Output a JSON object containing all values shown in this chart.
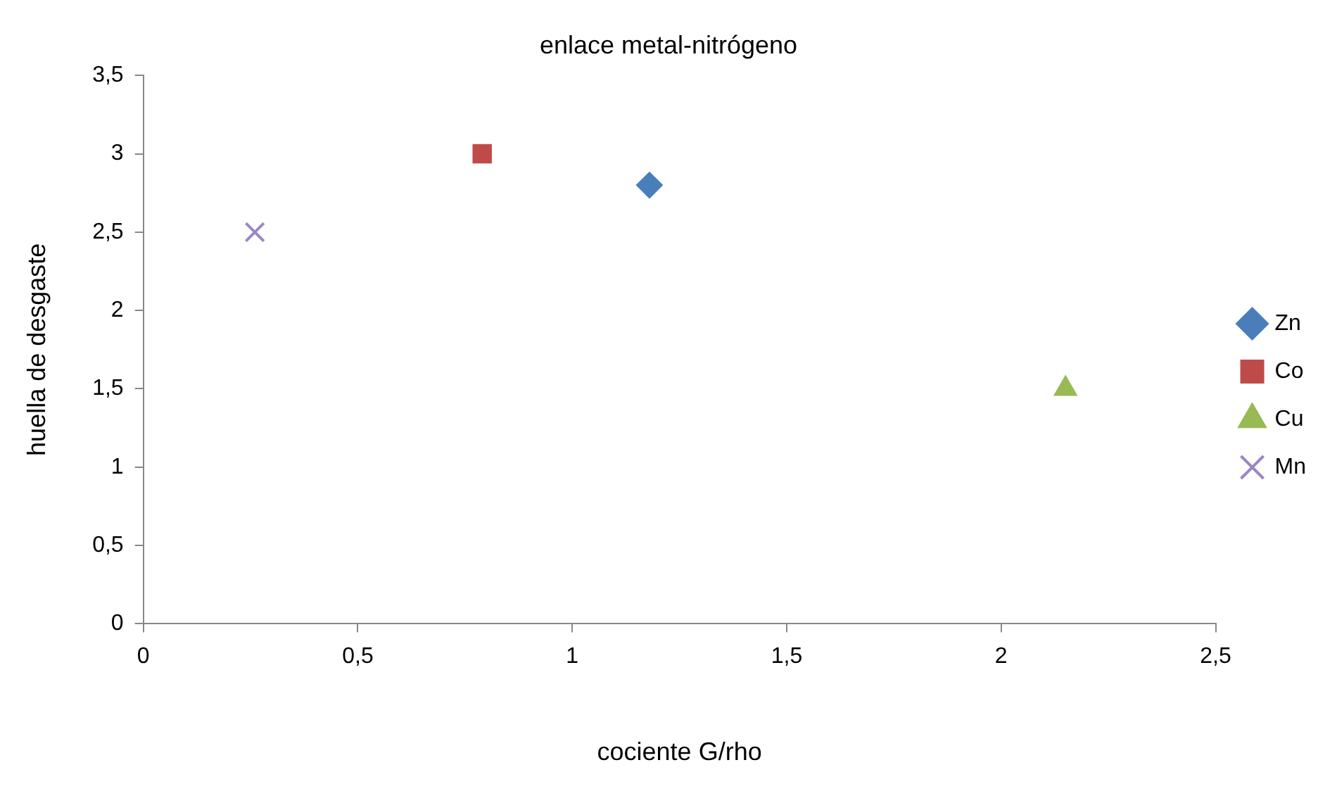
{
  "chart_data": {
    "type": "scatter",
    "title": "enlace metal-nitrógeno",
    "xlabel": "cociente G/rho",
    "ylabel": "huella de desgaste",
    "xlim": [
      0,
      2.5
    ],
    "xticks": [
      0,
      {
        "value": 0.5,
        "label": "0,5"
      },
      1,
      {
        "value": 1.5,
        "label": "1,5"
      },
      2,
      {
        "value": 2.5,
        "label": "2,5"
      }
    ],
    "ylim": [
      0,
      3.5
    ],
    "yticks": [
      0,
      {
        "value": 0.5,
        "label": "0,5"
      },
      1,
      {
        "value": 1.5,
        "label": "1,5"
      },
      2,
      {
        "value": 2.5,
        "label": "2,5"
      },
      3,
      {
        "value": 3.5,
        "label": "3,5"
      }
    ],
    "grid": false,
    "legend": "right",
    "series": [
      {
        "name": "Zn",
        "color": "#4a7ebb",
        "marker": "diamond",
        "x": [
          1.18
        ],
        "values": [
          2.8
        ]
      },
      {
        "name": "Co",
        "color": "#be4b48",
        "marker": "square",
        "x": [
          0.79
        ],
        "values": [
          3.0
        ]
      },
      {
        "name": "Cu",
        "color": "#98b954",
        "marker": "triangle",
        "x": [
          2.15
        ],
        "values": [
          1.5
        ]
      },
      {
        "name": "Mn",
        "color": "#9b87c4",
        "marker": "cross",
        "x": [
          0.26
        ],
        "values": [
          2.5
        ]
      }
    ]
  }
}
